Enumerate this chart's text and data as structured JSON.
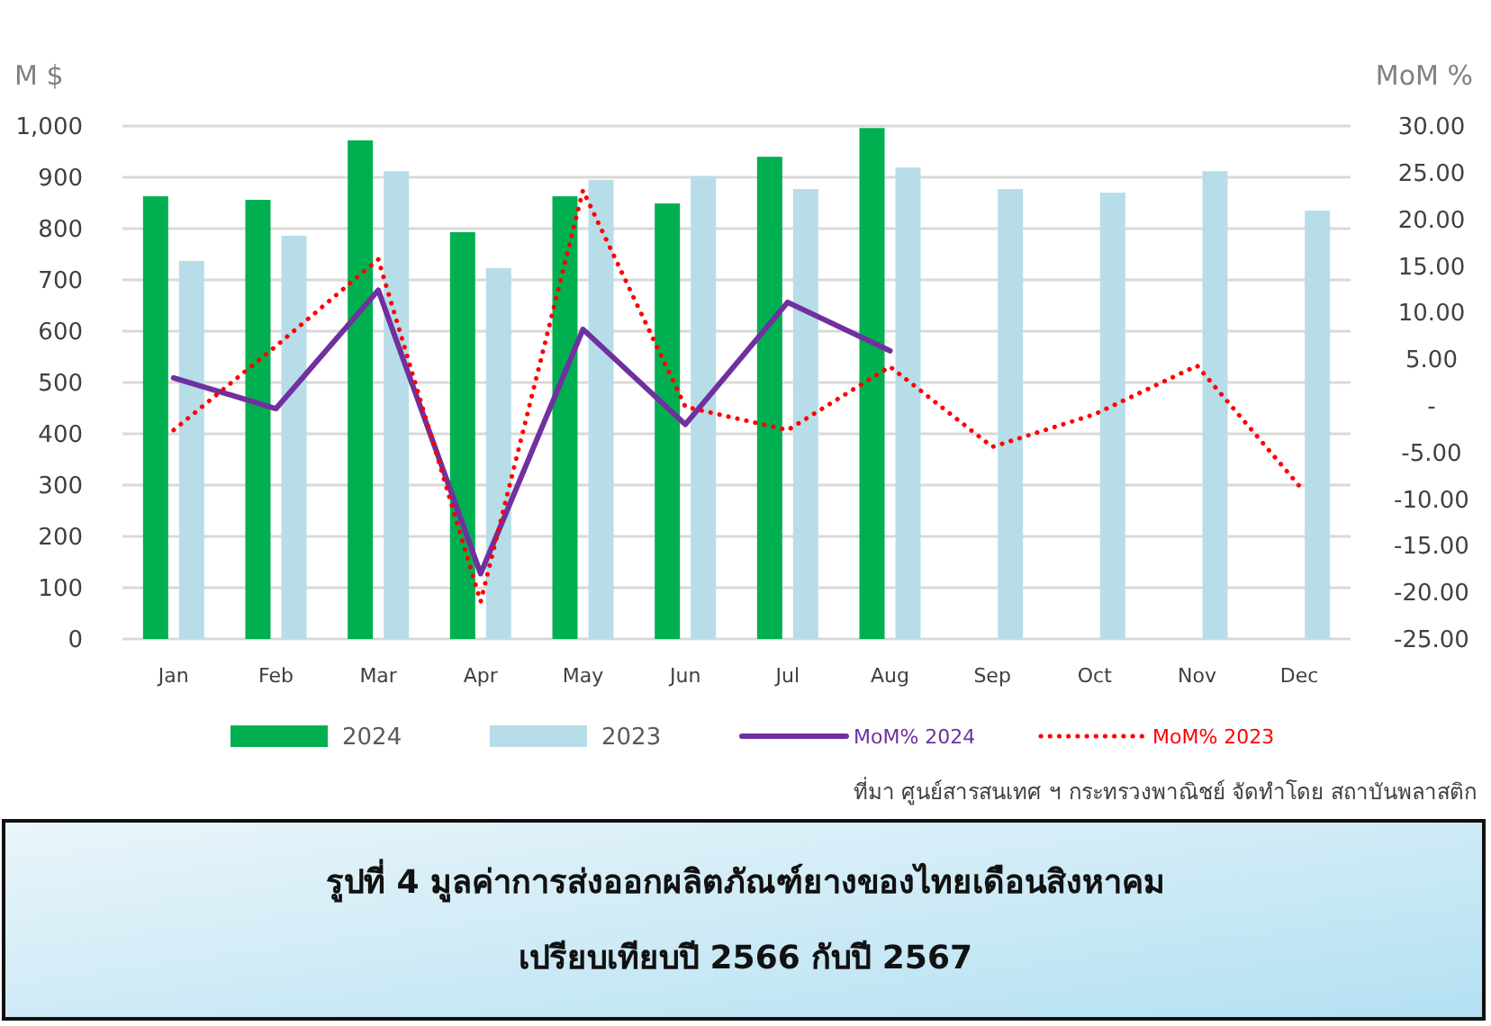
{
  "chart_data": {
    "type": "bar",
    "title": "รูปที่ 4 มูลค่าการส่งออกผลิตภัณฑ์ยางของไทยเดือนสิงหาคม",
    "subtitle": "เปรียบเทียบปี 2566 กับปี 2567",
    "ylabel": "M $",
    "y2label": "MoM %",
    "categories": [
      "Jan",
      "Feb",
      "Mar",
      "Apr",
      "May",
      "Jun",
      "Jul",
      "Aug",
      "Sep",
      "Oct",
      "Nov",
      "Dec"
    ],
    "series": [
      {
        "name": "2024",
        "color": "#00b050",
        "values": [
          863,
          856,
          972,
          793,
          863,
          849,
          940,
          996,
          null,
          null,
          null,
          null
        ]
      },
      {
        "name": "2023",
        "color": "#b7dde8",
        "values": [
          737,
          786,
          912,
          723,
          895,
          902,
          877,
          919,
          877,
          870,
          912,
          835
        ]
      },
      {
        "name": "MoM% 2024",
        "type": "line",
        "axis": "y2",
        "color": "#7030a0",
        "line_style": "solid",
        "values": [
          3.0,
          -0.3,
          12.4,
          -18.0,
          8.2,
          -2.0,
          11.1,
          5.9,
          null,
          null,
          null,
          null
        ]
      },
      {
        "name": "MoM% 2023",
        "type": "line",
        "axis": "y2",
        "color": "#ff0000",
        "line_style": "dotted",
        "values": [
          -2.6,
          6.4,
          15.7,
          -21.0,
          23.1,
          -0.1,
          -2.6,
          4.2,
          -4.4,
          -0.9,
          4.3,
          -8.6
        ]
      }
    ],
    "ylim": [
      0,
      1000
    ],
    "yticks": [
      0,
      100,
      200,
      300,
      400,
      500,
      600,
      700,
      800,
      900,
      {
        "value": 1000,
        "label": "1,000"
      }
    ],
    "y2lim": [
      -25,
      30
    ],
    "y2ticks": [
      {
        "value": -25,
        "label": "-25.00"
      },
      {
        "value": -20,
        "label": "-20.00"
      },
      {
        "value": -15,
        "label": "-15.00"
      },
      {
        "value": -10,
        "label": "-10.00"
      },
      {
        "value": -5,
        "label": "-5.00"
      },
      {
        "value": 0,
        "label": "-"
      },
      {
        "value": 5,
        "label": "5.00"
      },
      {
        "value": 10,
        "label": "10.00"
      },
      {
        "value": 15,
        "label": "15.00"
      },
      {
        "value": 20,
        "label": "20.00"
      },
      {
        "value": 25,
        "label": "25.00"
      },
      {
        "value": 30,
        "label": "30.00"
      }
    ],
    "grid": "y",
    "legend": "bottom",
    "annotations": [
      "ที่มา ศูนย์สารสนเทศ ฯ กระทรวงพาณิชย์ จัดทำโดย สถาบันพลาสติก"
    ]
  }
}
